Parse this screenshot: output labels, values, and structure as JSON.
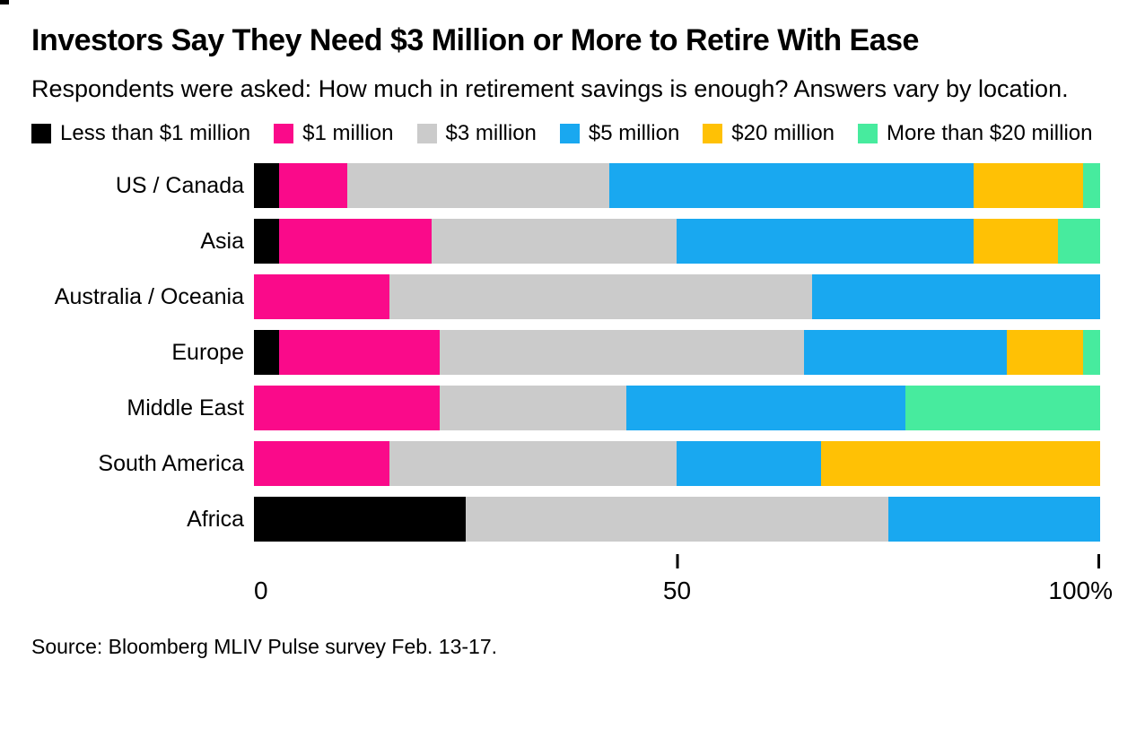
{
  "header": {
    "title": "Investors Say They Need $3 Million or More to Retire With Ease",
    "subtitle": "Respondents were asked: How much in retirement savings is enough? Answers vary by location."
  },
  "legend": {
    "items": [
      {
        "label": "Less than $1 million",
        "color": "#000000"
      },
      {
        "label": "$1 million",
        "color": "#FA0A8A"
      },
      {
        "label": "$3 million",
        "color": "#CBCBCB"
      },
      {
        "label": "$5 million",
        "color": "#19A8F0"
      },
      {
        "label": "$20 million",
        "color": "#FFC105"
      },
      {
        "label": "More than $20 million",
        "color": "#47EB9E"
      }
    ]
  },
  "chart_data": {
    "type": "bar",
    "orientation": "horizontal",
    "stacked": true,
    "unit": "percent",
    "title": "Investors Say They Need $3 Million or More to Retire With Ease",
    "subtitle": "Respondents were asked: How much in retirement savings is enough? Answers vary by location.",
    "categories": [
      "US / Canada",
      "Asia",
      "Australia / Oceania",
      "Europe",
      "Middle East",
      "South America",
      "Africa"
    ],
    "series": [
      {
        "name": "Less than $1 million",
        "color": "#000000",
        "values": [
          3,
          3,
          0,
          3,
          0,
          0,
          25
        ]
      },
      {
        "name": "$1 million",
        "color": "#FA0A8A",
        "values": [
          8,
          18,
          16,
          19,
          22,
          16,
          0
        ]
      },
      {
        "name": "$3 million",
        "color": "#CBCBCB",
        "values": [
          31,
          29,
          50,
          43,
          22,
          34,
          50
        ]
      },
      {
        "name": "$5 million",
        "color": "#19A8F0",
        "values": [
          43,
          35,
          34,
          24,
          33,
          17,
          25
        ]
      },
      {
        "name": "$20 million",
        "color": "#FFC105",
        "values": [
          13,
          10,
          0,
          9,
          0,
          33,
          0
        ]
      },
      {
        "name": "More than $20 million",
        "color": "#47EB9E",
        "values": [
          2,
          5,
          0,
          2,
          23,
          0,
          0
        ]
      }
    ],
    "xlim": [
      0,
      100
    ],
    "x_ticks": [
      0,
      50,
      100
    ],
    "x_tick_labels": [
      "0",
      "50",
      "100%"
    ],
    "grid": false,
    "legend_position": "top"
  },
  "axis": {
    "label_0": "0",
    "label_50": "50",
    "label_100": "100%"
  },
  "source": "Source: Bloomberg MLIV Pulse survey Feb. 13-17."
}
